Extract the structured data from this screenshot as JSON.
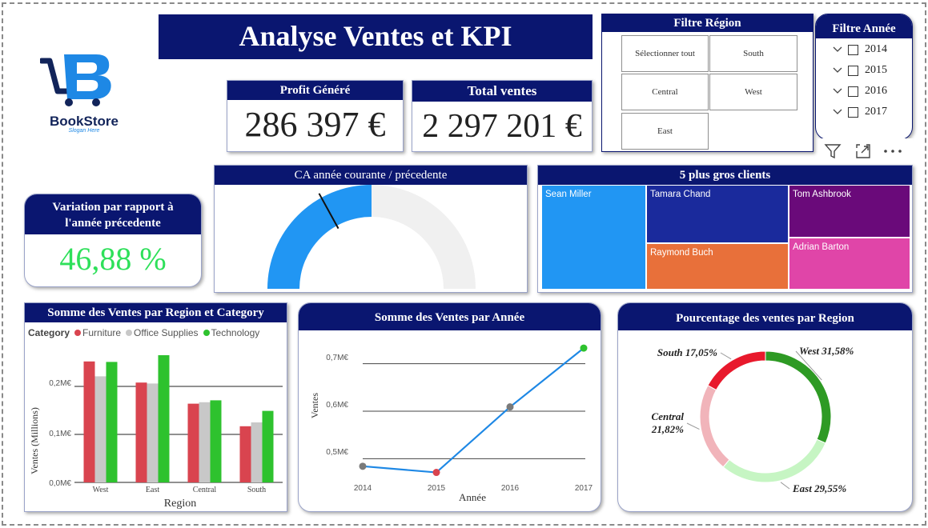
{
  "logo": {
    "brand": "BookStore",
    "slogan": "Slogan Here"
  },
  "title": "Analyse Ventes et KPI",
  "kpi": {
    "profit": {
      "label": "Profit Généré",
      "value": "286 397 €"
    },
    "sales": {
      "label": "Total ventes",
      "value": "2 297 201 €"
    },
    "variation": {
      "label": "Variation par rapport à l'année précedente",
      "value": "46,88 %"
    }
  },
  "region_filter": {
    "title": "Filtre Région",
    "options": [
      "Sélectionner tout",
      "South",
      "Central",
      "West",
      "East"
    ]
  },
  "year_filter": {
    "title": "Filtre Année",
    "years": [
      "2014",
      "2015",
      "2016",
      "2017"
    ]
  },
  "toolbar": {
    "filter": "filter-icon",
    "focus": "focus-mode-icon",
    "more": "more-options-icon"
  },
  "gauge": {
    "title": "CA année courante / précedente",
    "fill_fraction": 0.5,
    "target_fraction": 0.34,
    "color": "#2196f3"
  },
  "treemap": {
    "title": "5 plus gros clients",
    "items": [
      {
        "name": "Sean Miller",
        "color": "#2196f3"
      },
      {
        "name": "Tamara Chand",
        "color": "#1a2a9c"
      },
      {
        "name": "Tom Ashbrook",
        "color": "#6a0a7a"
      },
      {
        "name": "Raymond Buch",
        "color": "#e8703a"
      },
      {
        "name": "Adrian Barton",
        "color": "#e045a8"
      }
    ]
  },
  "bar_chart": {
    "title": "Somme des Ventes par Region et Category",
    "legend_title": "Category",
    "ylabel": "Ventes (Millions)",
    "xlabel": "Region",
    "ticks": [
      "0,0M€",
      "0,1M€",
      "0,2M€"
    ]
  },
  "line_chart": {
    "title": "Somme des Ventes par Année",
    "ylabel": "Ventes",
    "xlabel": "Année",
    "ticks": [
      "0,5M€",
      "0,6M€",
      "0,7M€"
    ]
  },
  "donut": {
    "title": "Pourcentage des ventes par Region"
  },
  "chart_data": [
    {
      "type": "bar",
      "title": "Somme des Ventes par Region et Category",
      "categories": [
        "West",
        "East",
        "Central",
        "South"
      ],
      "series": [
        {
          "name": "Furniture",
          "color": "#d9444f",
          "values": [
            0.252,
            0.208,
            0.164,
            0.117
          ]
        },
        {
          "name": "Office Supplies",
          "color": "#c8c8c8",
          "values": [
            0.221,
            0.206,
            0.167,
            0.125
          ]
        },
        {
          "name": "Technology",
          "color": "#2ec22e",
          "values": [
            0.251,
            0.265,
            0.171,
            0.149
          ]
        }
      ],
      "xlabel": "Region",
      "ylabel": "Ventes (Millions)",
      "ylim": [
        0,
        0.27
      ]
    },
    {
      "type": "line",
      "title": "Somme des Ventes par Année",
      "x": [
        "2014",
        "2015",
        "2016",
        "2017"
      ],
      "series": [
        {
          "name": "Ventes",
          "values": [
            0.484,
            0.471,
            0.609,
            0.733
          ],
          "point_colors": [
            "#7a7a7a",
            "#d9444f",
            "#7a7a7a",
            "#2ec22e"
          ]
        }
      ],
      "xlabel": "Année",
      "ylabel": "Ventes",
      "ylim": [
        0.45,
        0.75
      ]
    },
    {
      "type": "pie",
      "title": "Pourcentage des ventes par Region",
      "labels": [
        "West",
        "East",
        "Central",
        "South"
      ],
      "values": [
        31.58,
        29.55,
        21.82,
        17.05
      ],
      "display": [
        "West 31,58%",
        "East 29,55%",
        "Central 21,82%",
        "South 17,05%"
      ],
      "colors": [
        "#2e9a24",
        "#c6f5c3",
        "#f1b4ba",
        "#e8192c"
      ]
    }
  ]
}
